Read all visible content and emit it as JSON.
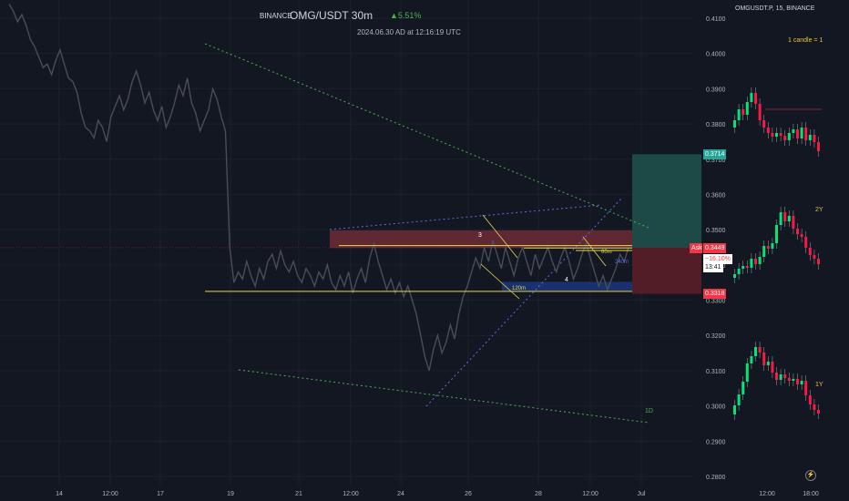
{
  "header": {
    "exchange": "BINANCE",
    "symbol": "OMG/USDT 30m",
    "change": "▲5.51%",
    "timestamp": "2024.06.30 AD at 12:16:19 UTC"
  },
  "side_panel": {
    "title": "OMGUSDT.P, 15, BINANCE",
    "note_top": "1 candle = 1",
    "label_2y": "2Y",
    "label_1y": "1Y"
  },
  "price_badges": {
    "target": "0.3714",
    "ask_label": "Ask",
    "ask": "0.3449",
    "ask_change": "−16.10%",
    "countdown": "13:41",
    "stop": "0.3318"
  },
  "annotations": {
    "box3": "3",
    "box4": "4",
    "m120": "120m",
    "m60": "60m",
    "m240": "240m",
    "d1": "1D"
  },
  "colors": {
    "background": "#131722",
    "up": "#4caf50",
    "down": "#f23645",
    "bull_candle": "#00e676",
    "bear_candle": "#ff1744",
    "price_line": "#4a4d57",
    "target_zone": "#1f4f4a",
    "stop_zone": "#5a1e27",
    "resistance_zone": "#6e2b35",
    "support_zone": "#1e3a8a",
    "trendline_green": "#4caf50",
    "trendline_blue": "#5b6ee1",
    "level_yellow": "#e6d84a"
  },
  "chart_data": [
    {
      "type": "line",
      "title": "OMG/USDT 30m",
      "x_ticks": [
        "14",
        "12:00",
        "17",
        "19",
        "21",
        "12:00",
        "24",
        "26",
        "28",
        "12:00",
        "Jul"
      ],
      "y_ticks": [
        "0.4100",
        "0.4000",
        "0.3900",
        "0.3800",
        "0.3700",
        "0.3600",
        "0.3500",
        "0.3400",
        "0.3300",
        "0.3200",
        "0.3100",
        "0.3000",
        "0.2900",
        "0.2800"
      ],
      "ylim": [
        0.2775,
        0.4125
      ],
      "series": [
        {
          "values": [
            0.414,
            0.412,
            0.409,
            0.411,
            0.408,
            0.404,
            0.402,
            0.399,
            0.396,
            0.397,
            0.394,
            0.398,
            0.401,
            0.397,
            0.393,
            0.392,
            0.389,
            0.383,
            0.379,
            0.378,
            0.376,
            0.381,
            0.379,
            0.375,
            0.382,
            0.385,
            0.388,
            0.384,
            0.387,
            0.392,
            0.395,
            0.391,
            0.386,
            0.389,
            0.384,
            0.381,
            0.385,
            0.379,
            0.382,
            0.386,
            0.391,
            0.388,
            0.393,
            0.386,
            0.383,
            0.378,
            0.381,
            0.384,
            0.39,
            0.387,
            0.382,
            0.378,
            0.345,
            0.335,
            0.338,
            0.336,
            0.341,
            0.337,
            0.334,
            0.339,
            0.336,
            0.341,
            0.343,
            0.339,
            0.344,
            0.34,
            0.338,
            0.341,
            0.337,
            0.335,
            0.339,
            0.337,
            0.334,
            0.338,
            0.336,
            0.34,
            0.335,
            0.333,
            0.337,
            0.334,
            0.338,
            0.332,
            0.336,
            0.339,
            0.335,
            0.342,
            0.346,
            0.341,
            0.337,
            0.333,
            0.336,
            0.332,
            0.335,
            0.331,
            0.334,
            0.33,
            0.326,
            0.32,
            0.314,
            0.31,
            0.316,
            0.32,
            0.315,
            0.318,
            0.323,
            0.319,
            0.326,
            0.331,
            0.334,
            0.338,
            0.342,
            0.339,
            0.345,
            0.341,
            0.347,
            0.343,
            0.339,
            0.345,
            0.341,
            0.337,
            0.342,
            0.345,
            0.341,
            0.337,
            0.343,
            0.339,
            0.342,
            0.345,
            0.341,
            0.338,
            0.342,
            0.345,
            0.341,
            0.336,
            0.339,
            0.343,
            0.346,
            0.342,
            0.338,
            0.334,
            0.337,
            0.333,
            0.336,
            0.339,
            0.343,
            0.341,
            0.345
          ]
        }
      ],
      "price_lines": [
        0.3449
      ],
      "zones": [
        {
          "label": "3",
          "low": 0.3448,
          "high": 0.3498
        },
        {
          "label": "4",
          "low": 0.3327,
          "high": 0.3352
        },
        {
          "label": "target",
          "low": 0.3449,
          "high": 0.3714
        },
        {
          "label": "stop",
          "low": 0.3318,
          "high": 0.3449
        }
      ],
      "levels": [
        0.3325,
        0.3455,
        0.3448,
        0.3441,
        0.3375
      ]
    },
    {
      "type": "candlestick",
      "title": "OMGUSDT.P, 15, BINANCE",
      "y_ticks": [],
      "x_ticks": [
        "12:00",
        "18:00"
      ],
      "panels": [
        "1 candle = 1",
        "2Y",
        "1Y"
      ]
    }
  ]
}
